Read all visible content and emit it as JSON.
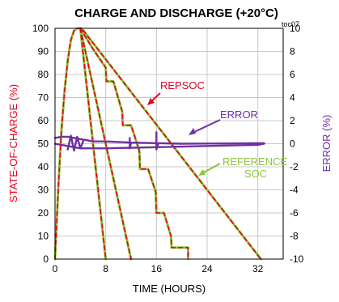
{
  "chart_data": {
    "type": "line",
    "title": "CHARGE AND DISCHARGE (+20°C)",
    "tag": "toc07",
    "xlabel": "TIME (HOURS)",
    "ylabel_left": "STATE-OF-CHARGE (%)",
    "ylabel_right": "ERROR (%)",
    "xlim": [
      0,
      36
    ],
    "ylim_left": [
      0,
      100
    ],
    "ylim_right": [
      -10,
      10
    ],
    "x_ticks": [
      "0",
      "8",
      "16",
      "24",
      "32"
    ],
    "y_ticks_left": [
      "0",
      "10",
      "20",
      "30",
      "40",
      "50",
      "60",
      "70",
      "80",
      "90",
      "100"
    ],
    "y_ticks_right": [
      "-10",
      "-8",
      "-6",
      "-4",
      "-2",
      "0",
      "2",
      "4",
      "6",
      "8",
      "10"
    ],
    "grid": true,
    "annotations": [
      {
        "text": "REPSOC",
        "color": "#e8001c"
      },
      {
        "text": "ERROR",
        "color": "#7030a0"
      },
      {
        "text": "REFERENCE",
        "color": "#8dc63f"
      },
      {
        "text": "SOC",
        "color": "#8dc63f"
      }
    ],
    "series": [
      {
        "label": "REPSOC",
        "axis": "left",
        "color": "#e8001c",
        "dash": true,
        "curves": [
          [
            [
              0,
              0
            ],
            [
              0.5,
              30
            ],
            [
              1,
              55
            ],
            [
              1.5,
              73
            ],
            [
              2,
              86
            ],
            [
              2.5,
              95
            ],
            [
              3,
              99
            ],
            [
              3.5,
              100
            ],
            [
              4.2,
              100
            ],
            [
              32.2,
              1
            ],
            [
              32.5,
              0
            ]
          ],
          [
            [
              4,
              100
            ],
            [
              8,
              0
            ]
          ],
          [
            [
              4,
              100
            ],
            [
              12,
              0
            ]
          ],
          [
            [
              4,
              100
            ],
            [
              6,
              91
            ],
            [
              8,
              83
            ],
            [
              8.1,
              77
            ],
            [
              9.2,
              77
            ],
            [
              10.6,
              64
            ],
            [
              10.7,
              58
            ],
            [
              12,
              58
            ],
            [
              13.3,
              47
            ],
            [
              13.4,
              39
            ],
            [
              14.7,
              39
            ],
            [
              15.9,
              29
            ],
            [
              16,
              20
            ],
            [
              17.2,
              20
            ],
            [
              18.3,
              10
            ],
            [
              18.4,
              5
            ],
            [
              21,
              5
            ],
            [
              21,
              0
            ]
          ]
        ]
      },
      {
        "label": "REFERENCE SOC",
        "axis": "left",
        "color": "#8dc63f",
        "dash": false,
        "curves": [
          [
            [
              0,
              0
            ],
            [
              0.5,
              30
            ],
            [
              1,
              55
            ],
            [
              1.5,
              73
            ],
            [
              2,
              86
            ],
            [
              2.5,
              95
            ],
            [
              3,
              99
            ],
            [
              3.5,
              100
            ],
            [
              4.2,
              100
            ],
            [
              32.2,
              1
            ],
            [
              32.5,
              0
            ]
          ],
          [
            [
              4,
              100
            ],
            [
              8,
              0
            ]
          ],
          [
            [
              4,
              100
            ],
            [
              12,
              0
            ]
          ],
          [
            [
              4,
              100
            ],
            [
              6,
              91
            ],
            [
              8,
              83
            ],
            [
              8.1,
              77
            ],
            [
              9.2,
              77
            ],
            [
              10.6,
              64
            ],
            [
              10.7,
              58
            ],
            [
              12,
              58
            ],
            [
              13.3,
              47
            ],
            [
              13.4,
              39
            ],
            [
              14.7,
              39
            ],
            [
              15.9,
              29
            ],
            [
              16,
              20
            ],
            [
              17.2,
              20
            ],
            [
              18.3,
              10
            ],
            [
              18.4,
              5
            ],
            [
              21,
              5
            ],
            [
              21,
              0
            ]
          ]
        ]
      },
      {
        "label": "ERROR",
        "axis": "right",
        "color": "#7030a0",
        "dash": false,
        "curves": [
          [
            [
              0,
              0
            ],
            [
              1,
              -0.1
            ],
            [
              2,
              -0.2
            ],
            [
              3,
              -0.3
            ],
            [
              4,
              -0.4
            ],
            [
              8,
              -0.4
            ],
            [
              12,
              -0.35
            ],
            [
              16,
              -0.3
            ],
            [
              20,
              -0.25
            ],
            [
              24,
              -0.2
            ],
            [
              28,
              -0.15
            ],
            [
              32,
              -0.1
            ],
            [
              33,
              0
            ]
          ],
          [
            [
              0,
              0.5
            ],
            [
              1,
              0.6
            ],
            [
              2,
              0.6
            ],
            [
              3,
              0.5
            ],
            [
              4,
              0.4
            ],
            [
              5,
              0.3
            ],
            [
              6,
              0.2
            ],
            [
              8,
              0.2
            ],
            [
              12,
              0.1
            ],
            [
              16,
              0.05
            ],
            [
              20,
              0
            ],
            [
              33,
              0.05
            ]
          ],
          [
            [
              2,
              -0.5
            ],
            [
              2.5,
              0.7
            ],
            [
              3,
              -0.6
            ],
            [
              3.5,
              0.6
            ],
            [
              4,
              -0.4
            ],
            [
              4.5,
              0.3
            ]
          ],
          [
            [
              11.8,
              0.5
            ],
            [
              11.8,
              -0.4
            ],
            [
              12,
              0.1
            ]
          ],
          [
            [
              16,
              1
            ],
            [
              16,
              -0.5
            ],
            [
              16.3,
              0
            ]
          ]
        ]
      }
    ]
  }
}
